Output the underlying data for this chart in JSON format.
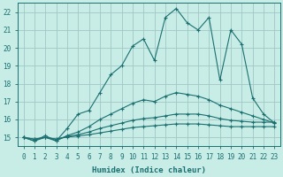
{
  "xlabel": "Humidex (Indice chaleur)",
  "ylabel": "",
  "xlim": [
    -0.5,
    23.5
  ],
  "ylim": [
    14.5,
    22.5
  ],
  "yticks": [
    15,
    16,
    17,
    18,
    19,
    20,
    21,
    22
  ],
  "xticks": [
    0,
    1,
    2,
    3,
    4,
    5,
    6,
    7,
    8,
    9,
    10,
    11,
    12,
    13,
    14,
    15,
    16,
    17,
    18,
    19,
    20,
    21,
    22,
    23
  ],
  "bg_color": "#c8ece6",
  "grid_color": "#a0c8c4",
  "line_color": "#1a7070",
  "line1_x": [
    0,
    1,
    2,
    3,
    4,
    5,
    6,
    7,
    8,
    9,
    10,
    11,
    12,
    13,
    14,
    15,
    16,
    17,
    18,
    19,
    20,
    21,
    22,
    23
  ],
  "line1_y": [
    15.0,
    14.8,
    15.1,
    14.8,
    15.5,
    16.3,
    16.5,
    17.5,
    18.5,
    19.0,
    20.1,
    20.5,
    19.3,
    21.7,
    22.2,
    21.4,
    21.0,
    21.7,
    18.2,
    21.0,
    20.2,
    17.2,
    16.3,
    15.8
  ],
  "line2_x": [
    0,
    1,
    2,
    3,
    4,
    5,
    6,
    7,
    8,
    9,
    10,
    11,
    12,
    13,
    14,
    15,
    16,
    17,
    18,
    19,
    20,
    21,
    22,
    23
  ],
  "line2_y": [
    15.0,
    14.8,
    15.0,
    14.8,
    15.1,
    15.3,
    15.6,
    16.0,
    16.3,
    16.6,
    16.9,
    17.1,
    17.0,
    17.3,
    17.5,
    17.4,
    17.3,
    17.1,
    16.8,
    16.6,
    16.4,
    16.2,
    16.0,
    15.8
  ],
  "line3_x": [
    0,
    1,
    2,
    3,
    4,
    5,
    6,
    7,
    8,
    9,
    10,
    11,
    12,
    13,
    14,
    15,
    16,
    17,
    18,
    19,
    20,
    21,
    22,
    23
  ],
  "line3_y": [
    15.0,
    14.9,
    15.0,
    14.9,
    15.05,
    15.15,
    15.3,
    15.5,
    15.65,
    15.8,
    15.95,
    16.05,
    16.1,
    16.2,
    16.3,
    16.3,
    16.3,
    16.2,
    16.05,
    15.95,
    15.9,
    15.85,
    15.85,
    15.85
  ],
  "line4_x": [
    0,
    1,
    2,
    3,
    4,
    5,
    6,
    7,
    8,
    9,
    10,
    11,
    12,
    13,
    14,
    15,
    16,
    17,
    18,
    19,
    20,
    21,
    22,
    23
  ],
  "line4_y": [
    15.0,
    14.9,
    15.0,
    14.9,
    15.02,
    15.08,
    15.15,
    15.25,
    15.35,
    15.45,
    15.55,
    15.6,
    15.65,
    15.7,
    15.75,
    15.75,
    15.75,
    15.7,
    15.65,
    15.6,
    15.6,
    15.6,
    15.6,
    15.6
  ]
}
